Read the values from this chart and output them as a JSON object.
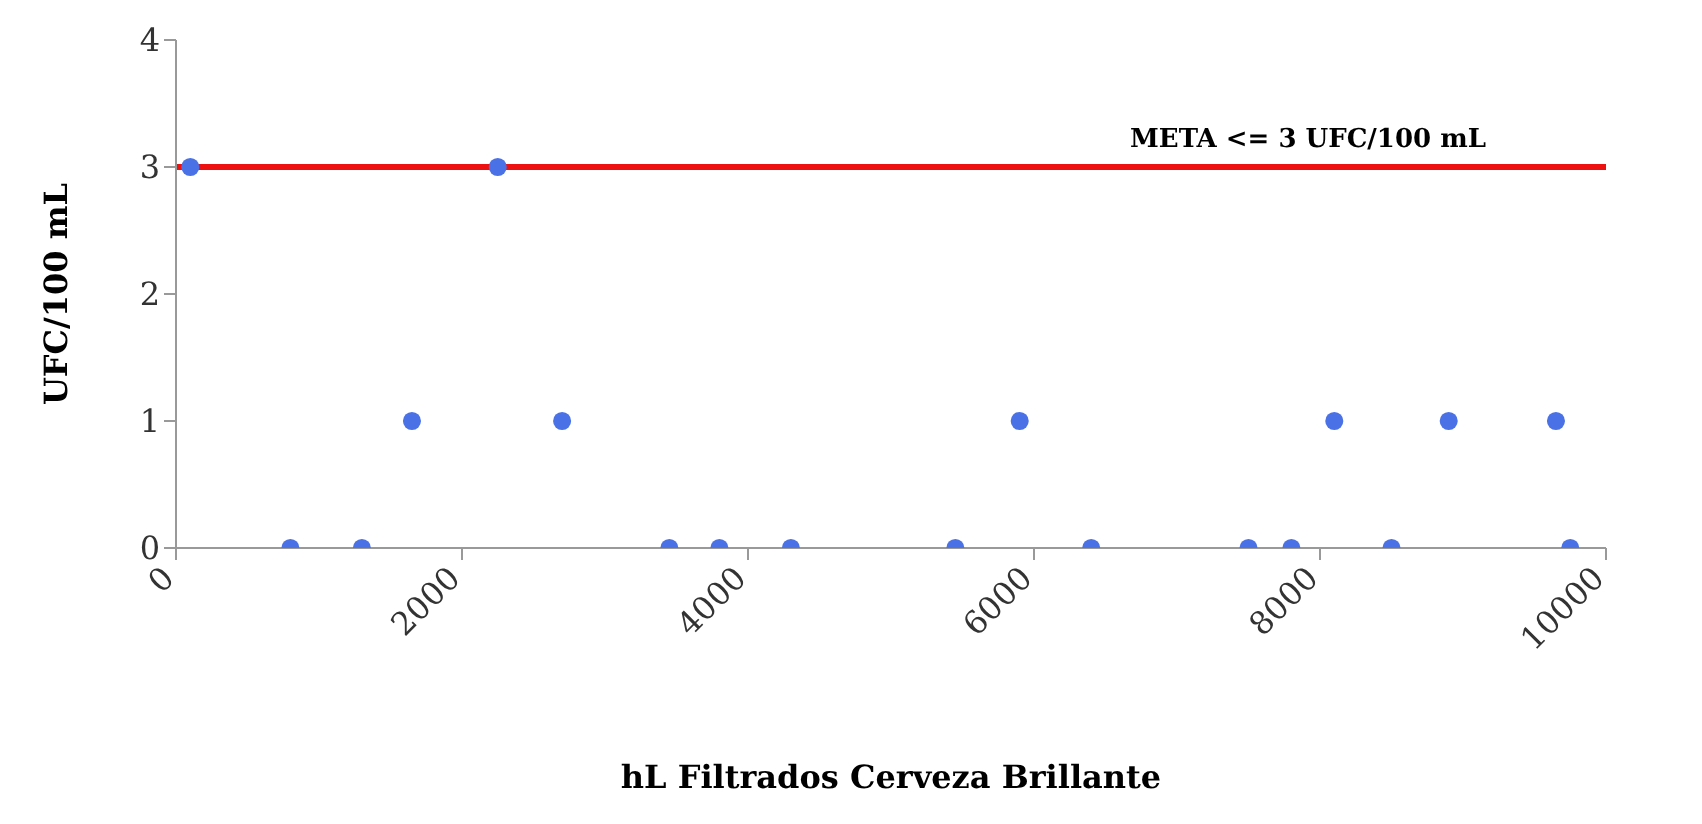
{
  "chart_data": {
    "type": "scatter",
    "xlabel": "hL Filtrados Cerveza Brillante",
    "ylabel": "UFC/100 mL",
    "x": [
      100,
      800,
      1300,
      1650,
      2250,
      2700,
      3450,
      3800,
      4300,
      5450,
      5900,
      6400,
      7500,
      7800,
      8100,
      8500,
      8900,
      9650,
      9750
    ],
    "values": [
      3,
      0,
      0,
      1,
      3,
      1,
      0,
      0,
      0,
      0,
      1,
      0,
      0,
      0,
      1,
      0,
      1,
      1,
      0
    ],
    "color": "#4a72e6",
    "marker": "circle",
    "xlim": [
      0,
      10000
    ],
    "xticks": [
      0,
      2000,
      4000,
      6000,
      8000,
      10000
    ],
    "ylim": [
      0,
      4
    ],
    "yticks": [
      0,
      1,
      2,
      3,
      4
    ],
    "grid": false,
    "ref_lines": [
      {
        "axis": "y",
        "value": 3,
        "label": "META <= 3 UFC/100 mL",
        "color": "#ee1111"
      }
    ]
  }
}
